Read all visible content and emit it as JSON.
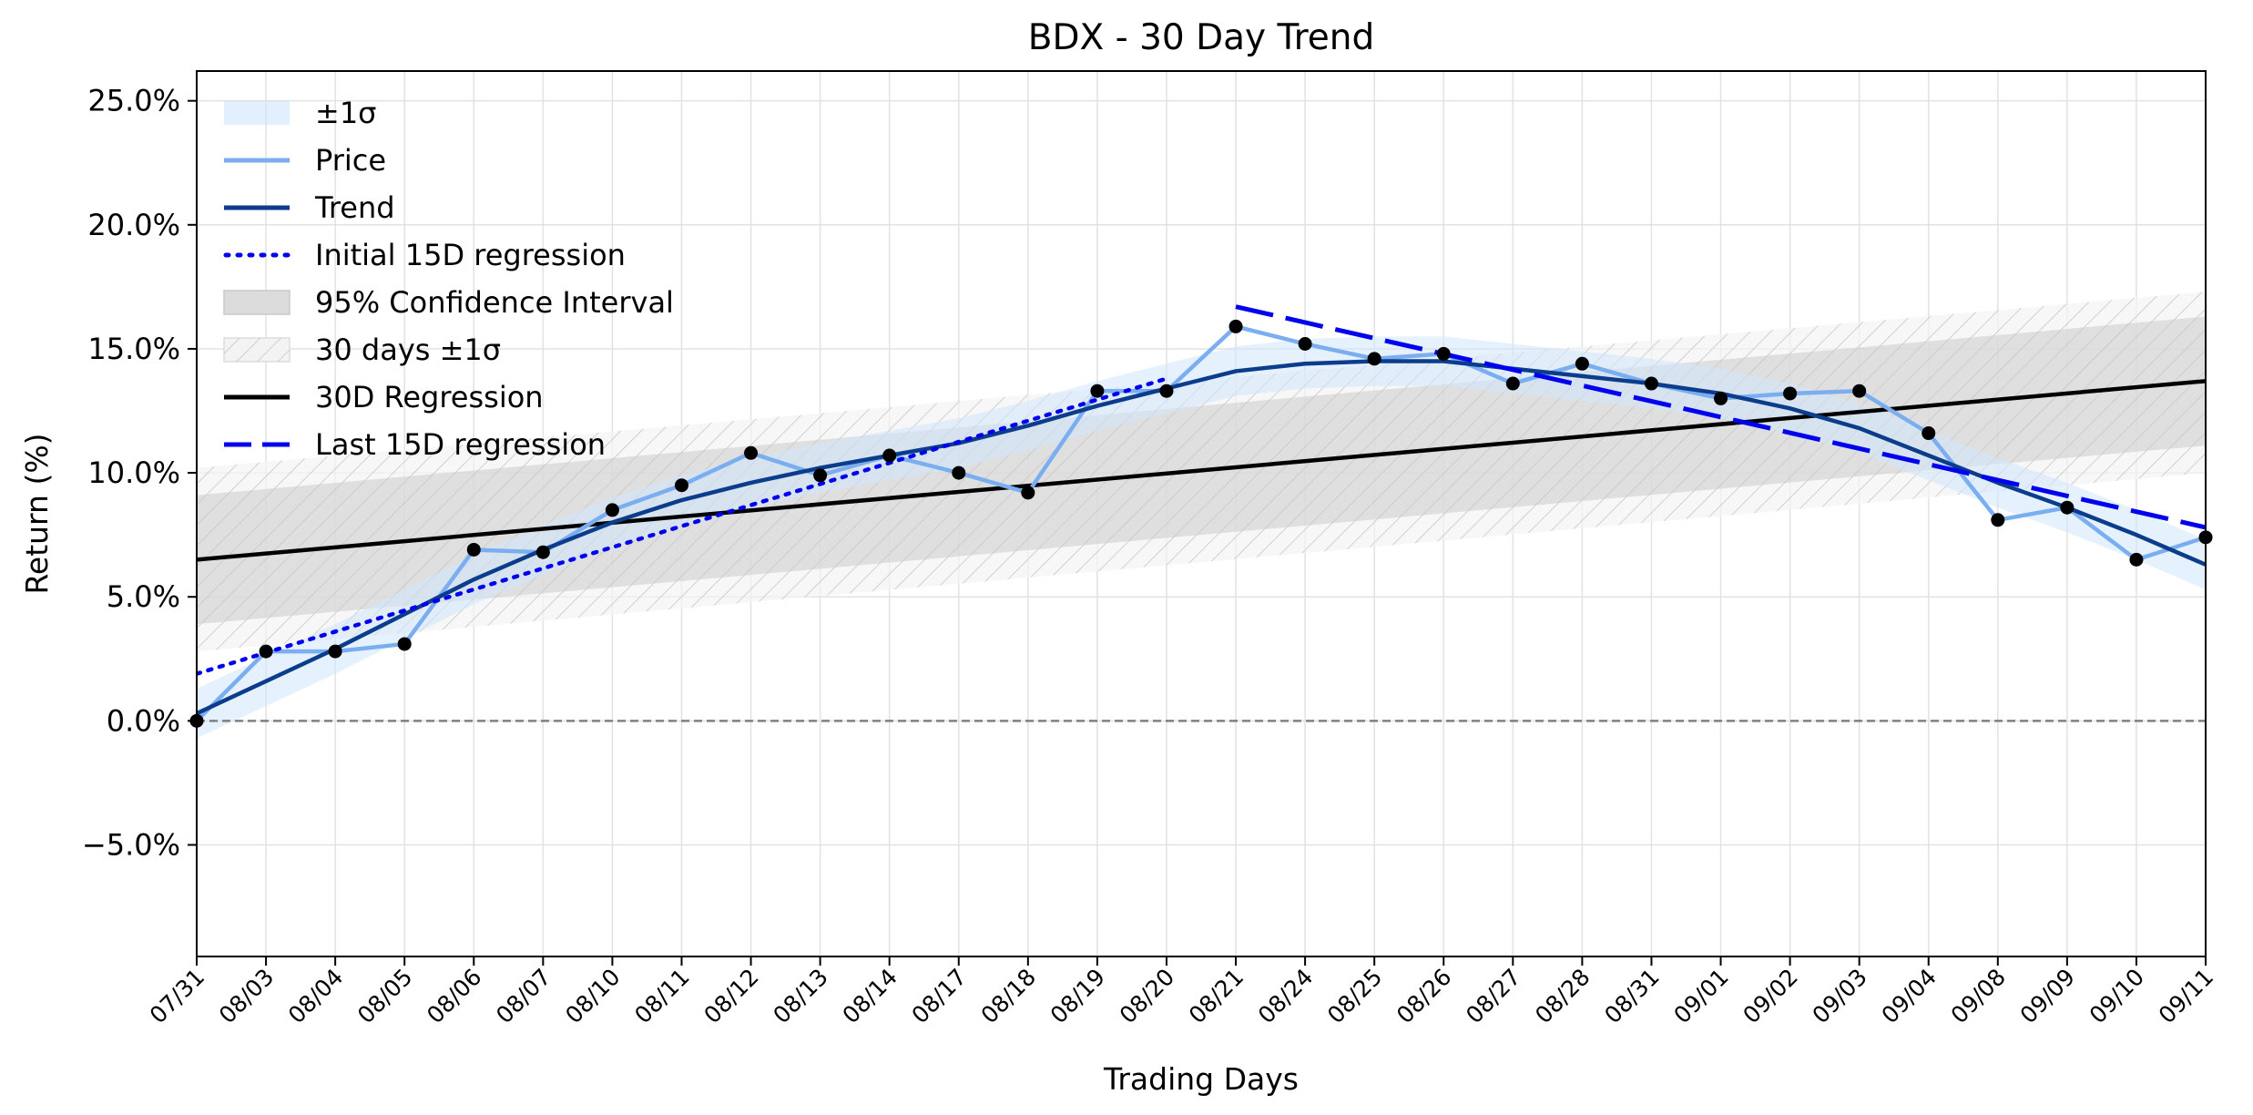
{
  "chart_data": {
    "type": "line",
    "title": "BDX - 30 Day Trend",
    "xlabel": "Trading Days",
    "ylabel": "Return (%)",
    "categories": [
      "07/31",
      "08/03",
      "08/04",
      "08/05",
      "08/06",
      "08/07",
      "08/10",
      "08/11",
      "08/12",
      "08/13",
      "08/14",
      "08/17",
      "08/18",
      "08/19",
      "08/20",
      "08/21",
      "08/24",
      "08/25",
      "08/26",
      "08/27",
      "08/28",
      "08/31",
      "09/01",
      "09/02",
      "09/03",
      "09/04",
      "09/08",
      "09/09",
      "09/10",
      "09/11"
    ],
    "ylim": [
      -9.5,
      26.2
    ],
    "yticks": [
      -5,
      0,
      5,
      10,
      15,
      20,
      25
    ],
    "ytick_labels": [
      "−5.0%",
      "0.0%",
      "5.0%",
      "10.0%",
      "15.0%",
      "20.0%",
      "25.0%"
    ],
    "grid": true,
    "legend_position": "top-left",
    "zero_line": 0,
    "series": [
      {
        "name": "Price",
        "color": "#7aaef0",
        "values": [
          0.0,
          2.8,
          2.8,
          3.1,
          6.9,
          6.8,
          8.5,
          9.5,
          10.8,
          9.9,
          10.7,
          10.0,
          9.2,
          13.3,
          13.3,
          15.9,
          15.2,
          14.6,
          14.8,
          13.6,
          14.4,
          13.6,
          13.0,
          13.2,
          13.3,
          11.6,
          8.1,
          8.6,
          6.5,
          7.4
        ]
      },
      {
        "name": "Trend",
        "color": "#0b3d8c",
        "values": [
          0.3,
          1.6,
          2.9,
          4.3,
          5.7,
          6.9,
          8.0,
          8.9,
          9.6,
          10.2,
          10.7,
          11.2,
          11.9,
          12.7,
          13.4,
          14.1,
          14.4,
          14.5,
          14.5,
          14.2,
          13.9,
          13.6,
          13.2,
          12.6,
          11.8,
          10.7,
          9.6,
          8.6,
          7.5,
          6.3
        ]
      },
      {
        "name": "Initial 15D regression",
        "color": "#0000ee",
        "style": "dotted",
        "x_range": [
          0,
          14
        ],
        "y_range": [
          1.9,
          13.8
        ]
      },
      {
        "name": "Last 15D regression",
        "color": "#0000ee",
        "style": "dashed",
        "x_range": [
          15,
          29
        ],
        "y_range": [
          16.7,
          7.8
        ]
      },
      {
        "name": "30D Regression",
        "color": "#000000",
        "x_range": [
          0,
          29
        ],
        "y_range": [
          6.5,
          13.7
        ]
      }
    ],
    "bands": [
      {
        "name": "±1σ",
        "color": "#cfe5fb",
        "half_width": 1.0
      },
      {
        "name": "95% Confidence Interval",
        "color": "#c8c8c8",
        "lower_range": [
          3.9,
          11.1
        ],
        "upper_range": [
          9.1,
          16.3
        ]
      },
      {
        "name": "30 days ±1σ",
        "color": "#e6e6e6",
        "hatch": true,
        "lower_range": [
          2.8,
          10.0
        ],
        "upper_range": [
          10.2,
          17.3
        ]
      }
    ],
    "legend": [
      {
        "label": "±1σ",
        "kind": "patch-blue"
      },
      {
        "label": "Price",
        "kind": "line-price"
      },
      {
        "label": "Trend",
        "kind": "line-trend"
      },
      {
        "label": "Initial 15D regression",
        "kind": "line-dotted"
      },
      {
        "label": "95% Confidence Interval",
        "kind": "patch-gray"
      },
      {
        "label": "30 days ±1σ",
        "kind": "patch-hatch"
      },
      {
        "label": "30D Regression",
        "kind": "line-black"
      },
      {
        "label": "Last 15D regression",
        "kind": "line-dashed"
      }
    ]
  }
}
